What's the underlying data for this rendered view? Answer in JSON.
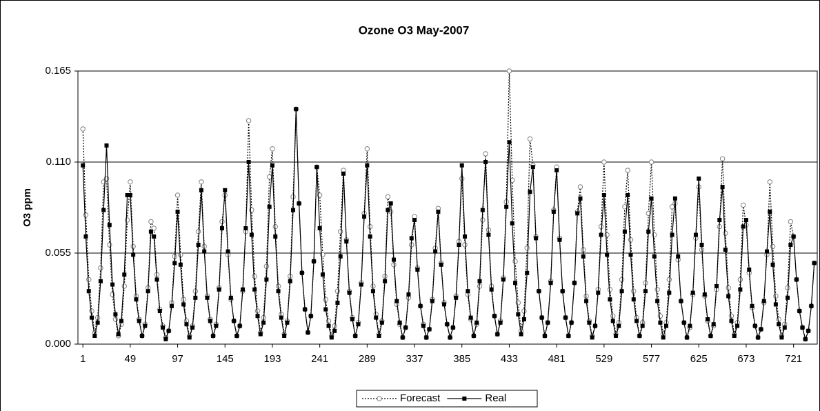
{
  "chart_data": {
    "type": "line",
    "title": "Ozone O3 May-2007",
    "y_label": "O3 ppm",
    "xlim": [
      -4,
      745
    ],
    "xticks": [
      1,
      49,
      97,
      145,
      193,
      241,
      289,
      337,
      385,
      433,
      481,
      529,
      577,
      625,
      673,
      721
    ],
    "ylim": [
      0,
      0.165
    ],
    "yticks": [
      {
        "value": 0,
        "label": "0.000"
      },
      {
        "value": 0.055,
        "label": "0.055"
      },
      {
        "value": 0.11,
        "label": "0.110"
      },
      {
        "value": 0.165,
        "label": "0.165"
      }
    ],
    "grid": true,
    "legend": "bottom",
    "x": [
      1,
      4,
      7,
      10,
      13,
      16,
      19,
      22,
      25,
      28,
      31,
      34,
      37,
      40,
      43,
      46,
      49,
      52,
      55,
      58,
      61,
      64,
      67,
      70,
      73,
      76,
      79,
      82,
      85,
      88,
      91,
      94,
      97,
      100,
      103,
      106,
      109,
      112,
      115,
      118,
      121,
      124,
      127,
      130,
      133,
      136,
      139,
      142,
      145,
      148,
      151,
      154,
      157,
      160,
      163,
      166,
      169,
      172,
      175,
      178,
      181,
      184,
      187,
      190,
      193,
      196,
      199,
      202,
      205,
      208,
      211,
      214,
      217,
      220,
      223,
      226,
      229,
      232,
      235,
      238,
      241,
      244,
      247,
      250,
      253,
      256,
      259,
      262,
      265,
      268,
      271,
      274,
      277,
      280,
      283,
      286,
      289,
      292,
      295,
      298,
      301,
      304,
      307,
      310,
      313,
      316,
      319,
      322,
      325,
      328,
      331,
      334,
      337,
      340,
      343,
      346,
      349,
      352,
      355,
      358,
      361,
      364,
      367,
      370,
      373,
      376,
      379,
      382,
      385,
      388,
      391,
      394,
      397,
      400,
      403,
      406,
      409,
      412,
      415,
      418,
      421,
      424,
      427,
      430,
      433,
      436,
      439,
      442,
      445,
      448,
      451,
      454,
      457,
      460,
      463,
      466,
      469,
      472,
      475,
      478,
      481,
      484,
      487,
      490,
      493,
      496,
      499,
      502,
      505,
      508,
      511,
      514,
      517,
      520,
      523,
      526,
      529,
      532,
      535,
      538,
      541,
      544,
      547,
      550,
      553,
      556,
      559,
      562,
      565,
      568,
      571,
      574,
      577,
      580,
      583,
      586,
      589,
      592,
      595,
      598,
      601,
      604,
      607,
      610,
      613,
      616,
      619,
      622,
      625,
      628,
      631,
      634,
      637,
      640,
      643,
      646,
      649,
      652,
      655,
      658,
      661,
      664,
      667,
      670,
      673,
      676,
      679,
      682,
      685,
      688,
      691,
      694,
      697,
      700,
      703,
      706,
      709,
      712,
      715,
      718,
      721,
      724,
      727,
      730,
      733,
      736,
      739,
      742
    ],
    "series": [
      {
        "name": "Forecast",
        "color": "#808080",
        "style": "dotted",
        "marker": "circle",
        "values": [
          0.13,
          0.078,
          0.039,
          0.02,
          0.007,
          0.016,
          0.046,
          0.098,
          0.1,
          0.06,
          0.03,
          0.015,
          0.005,
          0.012,
          0.035,
          0.075,
          0.098,
          0.059,
          0.029,
          0.015,
          0.005,
          0.012,
          0.034,
          0.074,
          0.07,
          0.042,
          0.021,
          0.011,
          0.004,
          0.008,
          0.025,
          0.053,
          0.09,
          0.054,
          0.027,
          0.014,
          0.005,
          0.011,
          0.032,
          0.068,
          0.098,
          0.059,
          0.029,
          0.015,
          0.005,
          0.012,
          0.034,
          0.074,
          0.09,
          0.054,
          0.027,
          0.014,
          0.005,
          0.011,
          0.032,
          0.068,
          0.135,
          0.081,
          0.041,
          0.02,
          0.007,
          0.016,
          0.047,
          0.101,
          0.118,
          0.071,
          0.035,
          0.018,
          0.006,
          0.014,
          0.041,
          0.089,
          0.142,
          0.085,
          0.043,
          0.021,
          0.007,
          0.017,
          0.05,
          0.107,
          0.09,
          0.054,
          0.027,
          0.014,
          0.005,
          0.011,
          0.032,
          0.068,
          0.105,
          0.063,
          0.032,
          0.016,
          0.005,
          0.013,
          0.037,
          0.079,
          0.118,
          0.071,
          0.035,
          0.018,
          0.006,
          0.014,
          0.041,
          0.089,
          0.08,
          0.048,
          0.024,
          0.012,
          0.004,
          0.01,
          0.028,
          0.06,
          0.077,
          0.046,
          0.023,
          0.012,
          0.004,
          0.009,
          0.027,
          0.058,
          0.082,
          0.049,
          0.025,
          0.012,
          0.004,
          0.01,
          0.029,
          0.062,
          0.1,
          0.06,
          0.03,
          0.015,
          0.005,
          0.012,
          0.035,
          0.075,
          0.115,
          0.069,
          0.035,
          0.017,
          0.006,
          0.014,
          0.04,
          0.086,
          0.165,
          0.099,
          0.05,
          0.025,
          0.008,
          0.02,
          0.058,
          0.124,
          0.108,
          0.065,
          0.032,
          0.016,
          0.005,
          0.013,
          0.038,
          0.081,
          0.107,
          0.064,
          0.032,
          0.016,
          0.005,
          0.013,
          0.037,
          0.08,
          0.095,
          0.057,
          0.029,
          0.014,
          0.005,
          0.011,
          0.033,
          0.071,
          0.11,
          0.066,
          0.033,
          0.017,
          0.006,
          0.013,
          0.039,
          0.083,
          0.105,
          0.063,
          0.032,
          0.016,
          0.005,
          0.013,
          0.037,
          0.079,
          0.11,
          0.066,
          0.033,
          0.017,
          0.006,
          0.013,
          0.039,
          0.083,
          0.085,
          0.051,
          0.026,
          0.013,
          0.004,
          0.01,
          0.03,
          0.064,
          0.095,
          0.057,
          0.029,
          0.014,
          0.005,
          0.011,
          0.033,
          0.071,
          0.112,
          0.067,
          0.034,
          0.017,
          0.006,
          0.013,
          0.039,
          0.084,
          0.072,
          0.043,
          0.022,
          0.011,
          0.004,
          0.009,
          0.025,
          0.054,
          0.098,
          0.059,
          0.029,
          0.015,
          0.005,
          0.012,
          0.034,
          0.074,
          0.065,
          0.039,
          0.02,
          0.01,
          0.003,
          0.008,
          0.023,
          0.049
        ]
      },
      {
        "name": "Real",
        "color": "#000000",
        "style": "solid",
        "marker": "square",
        "values": [
          0.108,
          0.065,
          0.032,
          0.016,
          0.005,
          0.013,
          0.038,
          0.081,
          0.12,
          0.072,
          0.036,
          0.018,
          0.006,
          0.014,
          0.042,
          0.09,
          0.09,
          0.054,
          0.027,
          0.014,
          0.005,
          0.011,
          0.032,
          0.068,
          0.065,
          0.039,
          0.02,
          0.01,
          0.003,
          0.008,
          0.023,
          0.049,
          0.08,
          0.048,
          0.024,
          0.012,
          0.004,
          0.01,
          0.028,
          0.06,
          0.093,
          0.056,
          0.028,
          0.014,
          0.005,
          0.011,
          0.033,
          0.07,
          0.093,
          0.056,
          0.028,
          0.014,
          0.005,
          0.011,
          0.033,
          0.07,
          0.11,
          0.066,
          0.033,
          0.017,
          0.006,
          0.013,
          0.039,
          0.083,
          0.108,
          0.065,
          0.032,
          0.016,
          0.005,
          0.013,
          0.038,
          0.081,
          0.142,
          0.085,
          0.043,
          0.021,
          0.007,
          0.017,
          0.05,
          0.107,
          0.07,
          0.042,
          0.021,
          0.011,
          0.004,
          0.008,
          0.025,
          0.053,
          0.103,
          0.062,
          0.031,
          0.015,
          0.005,
          0.012,
          0.036,
          0.077,
          0.108,
          0.065,
          0.032,
          0.016,
          0.005,
          0.013,
          0.038,
          0.081,
          0.085,
          0.051,
          0.026,
          0.013,
          0.004,
          0.01,
          0.03,
          0.064,
          0.075,
          0.045,
          0.023,
          0.011,
          0.004,
          0.009,
          0.026,
          0.056,
          0.08,
          0.048,
          0.024,
          0.012,
          0.004,
          0.01,
          0.028,
          0.06,
          0.108,
          0.065,
          0.032,
          0.016,
          0.005,
          0.013,
          0.038,
          0.081,
          0.11,
          0.066,
          0.033,
          0.017,
          0.006,
          0.013,
          0.039,
          0.083,
          0.122,
          0.073,
          0.037,
          0.018,
          0.006,
          0.015,
          0.043,
          0.092,
          0.107,
          0.064,
          0.032,
          0.016,
          0.005,
          0.013,
          0.037,
          0.08,
          0.105,
          0.063,
          0.032,
          0.016,
          0.005,
          0.013,
          0.037,
          0.079,
          0.088,
          0.053,
          0.026,
          0.013,
          0.004,
          0.011,
          0.031,
          0.066,
          0.09,
          0.054,
          0.027,
          0.014,
          0.005,
          0.011,
          0.032,
          0.068,
          0.09,
          0.054,
          0.027,
          0.014,
          0.005,
          0.011,
          0.032,
          0.068,
          0.088,
          0.053,
          0.026,
          0.013,
          0.004,
          0.011,
          0.031,
          0.066,
          0.088,
          0.053,
          0.026,
          0.013,
          0.004,
          0.011,
          0.031,
          0.066,
          0.1,
          0.06,
          0.03,
          0.015,
          0.005,
          0.012,
          0.035,
          0.075,
          0.095,
          0.057,
          0.029,
          0.014,
          0.005,
          0.011,
          0.033,
          0.071,
          0.075,
          0.045,
          0.023,
          0.011,
          0.004,
          0.009,
          0.026,
          0.056,
          0.08,
          0.048,
          0.024,
          0.012,
          0.004,
          0.01,
          0.028,
          0.06,
          0.065,
          0.039,
          0.02,
          0.01,
          0.003,
          0.008,
          0.023,
          0.049
        ]
      }
    ]
  }
}
